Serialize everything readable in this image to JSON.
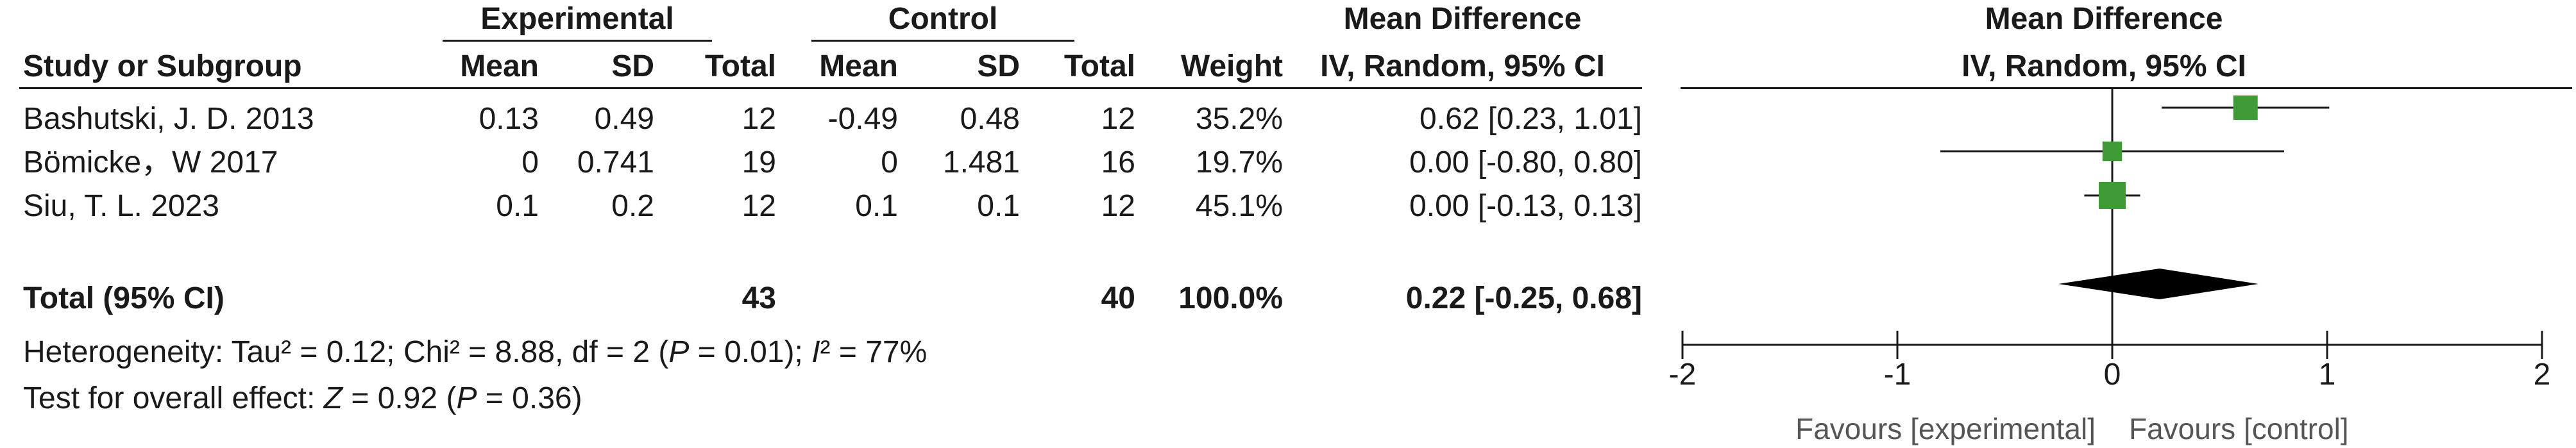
{
  "headers": {
    "group1": "Experimental",
    "group2": "Control",
    "md_table": "Mean Difference",
    "md_method_table": "IV, Random, 95% CI",
    "md_plot": "Mean Difference",
    "md_method_plot": "IV, Random, 95% CI",
    "study": "Study or Subgroup",
    "mean": "Mean",
    "sd": "SD",
    "total": "Total",
    "weight": "Weight"
  },
  "studies": [
    {
      "name": "Bashutski, J. D. 2013",
      "e_mean": "0.13",
      "e_sd": "0.49",
      "e_total": "12",
      "c_mean": "-0.49",
      "c_sd": "0.48",
      "c_total": "12",
      "weight": "35.2%",
      "ci_text": "0.62 [0.23, 1.01]"
    },
    {
      "name": "Bömicke，W 2017",
      "e_mean": "0",
      "e_sd": "0.741",
      "e_total": "19",
      "c_mean": "0",
      "c_sd": "1.481",
      "c_total": "16",
      "weight": "19.7%",
      "ci_text": "0.00 [-0.80, 0.80]"
    },
    {
      "name": "Siu, T. L. 2023",
      "e_mean": "0.1",
      "e_sd": "0.2",
      "e_total": "12",
      "c_mean": "0.1",
      "c_sd": "0.1",
      "c_total": "12",
      "weight": "45.1%",
      "ci_text": "0.00 [-0.13, 0.13]"
    }
  ],
  "total": {
    "label": "Total (95% CI)",
    "e_total": "43",
    "c_total": "40",
    "weight": "100.0%",
    "ci_text": "0.22 [-0.25, 0.68]"
  },
  "footer": {
    "heterogeneity_prefix": "Heterogeneity: Tau² = 0.12; Chi² = 8.88, df = 2 (",
    "heterogeneity_p": "P",
    "heterogeneity_mid": " = 0.01); ",
    "heterogeneity_i": "I",
    "heterogeneity_suffix": "² = 77%",
    "overall_prefix": "Test for overall effect: ",
    "overall_z": "Z",
    "overall_mid": " = 0.92 (",
    "overall_p": "P",
    "overall_suffix": " = 0.36)"
  },
  "chart_data": {
    "type": "forest",
    "xlim": [
      -2,
      2
    ],
    "x_ticks": [
      -2,
      -1,
      0,
      1,
      2
    ],
    "x_tick_labels": [
      "-2",
      "-1",
      "0",
      "1",
      "2"
    ],
    "favours_left": "Favours [experimental]",
    "favours_right": "Favours [control]",
    "studies": [
      {
        "name": "Bashutski, J. D. 2013",
        "estimate": 0.62,
        "lower": 0.23,
        "upper": 1.01,
        "weight": 35.2
      },
      {
        "name": "Bömicke，W 2017",
        "estimate": 0.0,
        "lower": -0.8,
        "upper": 0.8,
        "weight": 19.7
      },
      {
        "name": "Siu, T. L. 2023",
        "estimate": 0.0,
        "lower": -0.13,
        "upper": 0.13,
        "weight": 45.1
      }
    ],
    "pooled": {
      "estimate": 0.22,
      "lower": -0.25,
      "upper": 0.68
    },
    "colors": {
      "study_marker": "#3f9b35",
      "pooled_diamond": "#000000",
      "line": "#1a1a1a"
    }
  }
}
